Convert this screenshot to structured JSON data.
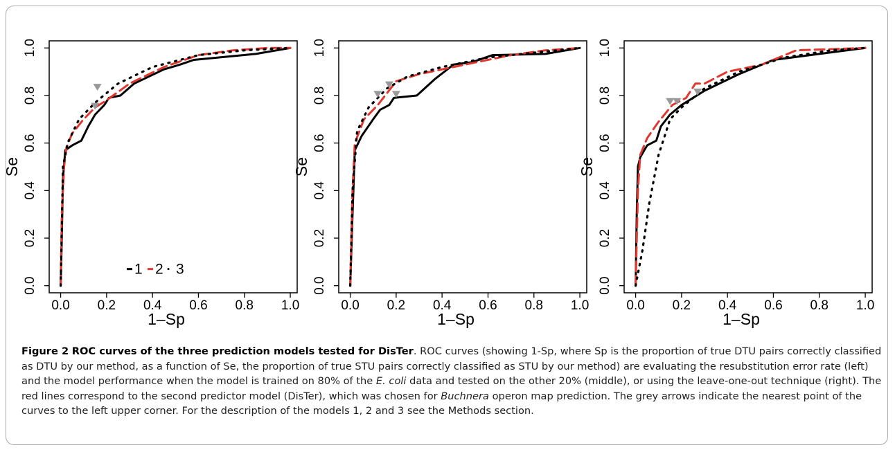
{
  "chart_data": [
    {
      "type": "line",
      "xlabel": "1–Sp",
      "ylabel": "Se",
      "xlim": [
        -0.05,
        1.03
      ],
      "ylim": [
        -0.03,
        1.03
      ],
      "xticks": [
        {
          "value": 0,
          "label": "0.0"
        },
        0.2,
        0.4,
        0.6,
        0.8,
        {
          "value": 1,
          "label": "1.0"
        }
      ],
      "yticks": [
        {
          "value": 0,
          "label": "0.0"
        },
        0.2,
        0.4,
        0.6,
        0.8,
        {
          "value": 1,
          "label": "1.0"
        }
      ],
      "legend": true,
      "legend_position": "bottom",
      "series": [
        {
          "name": "1",
          "color": "#000000",
          "dash": "solid",
          "x": [
            0,
            0.005,
            0.01,
            0.02,
            0.05,
            0.09,
            0.12,
            0.15,
            0.19,
            0.21,
            0.26,
            0.32,
            0.45,
            0.52,
            0.58,
            0.85,
            1
          ],
          "values": [
            0,
            0.2,
            0.45,
            0.57,
            0.59,
            0.61,
            0.67,
            0.72,
            0.76,
            0.79,
            0.8,
            0.85,
            0.91,
            0.93,
            0.95,
            0.975,
            1
          ]
        },
        {
          "name": "2",
          "color": "#e0382f",
          "dash": "dashed",
          "x": [
            0,
            0.005,
            0.015,
            0.025,
            0.05,
            0.1,
            0.15,
            0.2,
            0.3,
            0.45,
            0.6,
            0.75,
            0.9,
            1
          ],
          "values": [
            0,
            0.3,
            0.5,
            0.58,
            0.64,
            0.7,
            0.75,
            0.78,
            0.85,
            0.92,
            0.97,
            0.99,
            1,
            1
          ]
        },
        {
          "name": "3",
          "color": "#000000",
          "dash": "dotted",
          "x": [
            0,
            0.01,
            0.03,
            0.08,
            0.15,
            0.25,
            0.4,
            0.6,
            0.8,
            1
          ],
          "values": [
            0,
            0.5,
            0.6,
            0.7,
            0.77,
            0.85,
            0.92,
            0.97,
            0.99,
            1
          ]
        }
      ],
      "points": {
        "color": "#999999",
        "x": [
          0.15,
          0.16
        ],
        "values": [
          0.74,
          0.82
        ]
      }
    },
    {
      "type": "line",
      "xlabel": "1–Sp",
      "ylabel": "Se",
      "xlim": [
        -0.05,
        1.03
      ],
      "ylim": [
        -0.03,
        1.03
      ],
      "xticks": [
        {
          "value": 0,
          "label": "0.0"
        },
        0.2,
        0.4,
        0.6,
        0.8,
        {
          "value": 1,
          "label": "1.0"
        }
      ],
      "yticks": [
        {
          "value": 0,
          "label": "0.0"
        },
        0.2,
        0.4,
        0.6,
        0.8,
        {
          "value": 1,
          "label": "1.0"
        }
      ],
      "legend": false,
      "series": [
        {
          "name": "1",
          "color": "#000000",
          "dash": "solid",
          "x": [
            0,
            0.01,
            0.02,
            0.05,
            0.1,
            0.13,
            0.17,
            0.19,
            0.29,
            0.37,
            0.45,
            0.53,
            0.62,
            0.85,
            1
          ],
          "values": [
            0,
            0.3,
            0.57,
            0.63,
            0.7,
            0.74,
            0.76,
            0.79,
            0.8,
            0.87,
            0.93,
            0.94,
            0.97,
            0.975,
            1
          ]
        },
        {
          "name": "2",
          "color": "#e0382f",
          "dash": "dashed",
          "x": [
            0,
            0.01,
            0.02,
            0.06,
            0.12,
            0.2,
            0.3,
            0.45,
            0.55,
            0.7,
            0.85,
            1
          ],
          "values": [
            0,
            0.4,
            0.6,
            0.7,
            0.76,
            0.86,
            0.89,
            0.92,
            0.94,
            0.97,
            0.99,
            1
          ]
        },
        {
          "name": "3",
          "color": "#000000",
          "dash": "dotted",
          "x": [
            0,
            0.01,
            0.03,
            0.08,
            0.16,
            0.25,
            0.4,
            0.6,
            0.8,
            1
          ],
          "values": [
            0,
            0.4,
            0.65,
            0.75,
            0.83,
            0.88,
            0.92,
            0.96,
            0.98,
            1
          ]
        }
      ],
      "points": {
        "color": "#999999",
        "x": [
          0.12,
          0.17,
          0.2
        ],
        "values": [
          0.79,
          0.83,
          0.79
        ]
      }
    },
    {
      "type": "line",
      "xlabel": "1–Sp",
      "ylabel": "Se",
      "xlim": [
        -0.05,
        1.03
      ],
      "ylim": [
        -0.03,
        1.03
      ],
      "xticks": [
        {
          "value": 0,
          "label": "0.0"
        },
        0.2,
        0.4,
        0.6,
        0.8,
        {
          "value": 1,
          "label": "1.0"
        }
      ],
      "yticks": [
        {
          "value": 0,
          "label": "0.0"
        },
        0.2,
        0.4,
        0.6,
        0.8,
        {
          "value": 1,
          "label": "1.0"
        }
      ],
      "legend": false,
      "series": [
        {
          "name": "1",
          "color": "#000000",
          "dash": "solid",
          "x": [
            0,
            0.005,
            0.01,
            0.02,
            0.05,
            0.09,
            0.11,
            0.15,
            0.2,
            0.3,
            0.45,
            0.6,
            0.8,
            1
          ],
          "values": [
            0,
            0.3,
            0.5,
            0.54,
            0.59,
            0.61,
            0.67,
            0.72,
            0.76,
            0.82,
            0.89,
            0.95,
            0.975,
            1
          ]
        },
        {
          "name": "2",
          "color": "#e0382f",
          "dash": "dashed",
          "x": [
            0,
            0.01,
            0.02,
            0.05,
            0.1,
            0.16,
            0.22,
            0.26,
            0.3,
            0.4,
            0.55,
            0.7,
            1
          ],
          "values": [
            0,
            0.4,
            0.55,
            0.62,
            0.69,
            0.76,
            0.79,
            0.85,
            0.85,
            0.9,
            0.93,
            0.99,
            1
          ]
        },
        {
          "name": "3",
          "color": "#000000",
          "dash": "dotted",
          "x": [
            0,
            0.03,
            0.06,
            0.1,
            0.15,
            0.2,
            0.3,
            0.45,
            0.65,
            0.85,
            1
          ],
          "values": [
            0,
            0.15,
            0.35,
            0.55,
            0.7,
            0.75,
            0.83,
            0.9,
            0.96,
            0.99,
            1
          ]
        }
      ],
      "points": {
        "color": "#999999",
        "x": [
          0.15,
          0.18,
          0.27
        ],
        "values": [
          0.76,
          0.76,
          0.8
        ]
      }
    }
  ],
  "caption": {
    "label": "Figure 2",
    "title": "ROC curves of the three prediction models tested for DisTer",
    "parts": [
      {
        "text": ". ROC curves (showing 1-Sp, where Sp is the proportion of true DTU pairs correctly classified as DTU by our method, as a function of Se, the proportion of true STU pairs correctly classified as STU by our method) are evaluating the resubstitution error rate (left) and the model performance when the model is trained on 80% of the "
      },
      {
        "text": "E. coli",
        "style": "italic"
      },
      {
        "text": " data and tested on the other 20% (middle), or using the leave-one-out technique (right). The red lines correspond to the second predictor model (DisTer), which was chosen for "
      },
      {
        "text": "Buchnera",
        "style": "italic"
      },
      {
        "text": " operon map prediction. The grey arrows indicate the nearest point of the curves to the left upper corner. For the description of the models 1, 2 and 3 see the Methods section."
      }
    ]
  }
}
